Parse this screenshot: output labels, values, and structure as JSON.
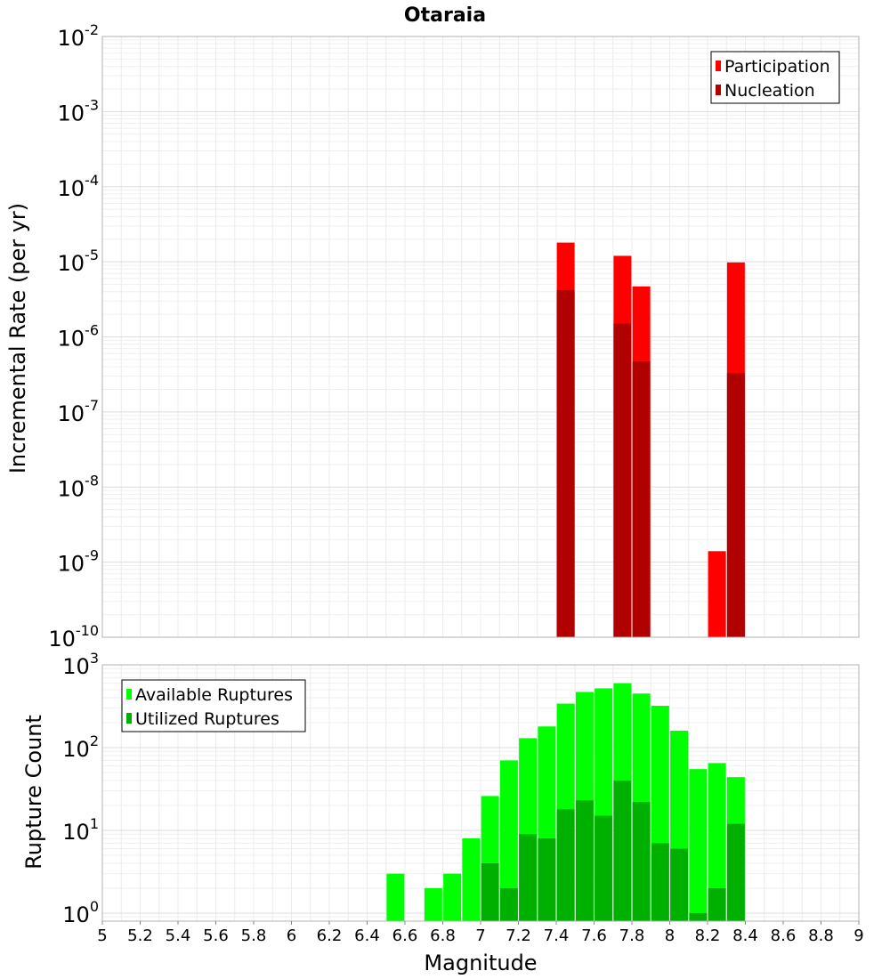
{
  "chart_data": [
    {
      "type": "bar",
      "title": "Otaraia",
      "xlabel": "",
      "ylabel": "Incremental Rate (per yr)",
      "yscale": "log",
      "ylim": [
        1e-10,
        0.01
      ],
      "xlim": [
        5,
        9
      ],
      "y_tick_exponents": [
        -10,
        -9,
        -8,
        -7,
        -6,
        -5,
        -4,
        -3,
        -2
      ],
      "grid": true,
      "legend_position": "top-right",
      "series": [
        {
          "name": "Participation",
          "color": "#ff0000",
          "x": [
            7.45,
            7.75,
            7.85,
            8.25,
            8.35
          ],
          "values": [
            1.8e-05,
            1.2e-05,
            4.7e-06,
            1.4e-09,
            9.8e-06
          ]
        },
        {
          "name": "Nucleation",
          "color": "#b00000",
          "x": [
            7.45,
            7.75,
            7.85,
            8.35
          ],
          "values": [
            4.2e-06,
            1.5e-06,
            4.7e-07,
            3.3e-07
          ]
        }
      ]
    },
    {
      "type": "bar",
      "xlabel": "Magnitude",
      "ylabel": "Rupture Count",
      "yscale": "log",
      "ylim": [
        0.8,
        1000
      ],
      "xlim": [
        5,
        9
      ],
      "y_tick_exponents": [
        0,
        1,
        2,
        3
      ],
      "x_tick_labels": [
        "5",
        "5.2",
        "5.4",
        "5.6",
        "5.8",
        "6",
        "6.2",
        "6.4",
        "6.6",
        "6.8",
        "7",
        "7.2",
        "7.4",
        "7.6",
        "7.8",
        "8",
        "8.2",
        "8.4",
        "8.6",
        "8.8",
        "9"
      ],
      "grid": true,
      "legend_position": "top-left",
      "series": [
        {
          "name": "Available Ruptures",
          "color": "#00ff00",
          "x": [
            6.55,
            6.75,
            6.85,
            6.95,
            7.05,
            7.15,
            7.25,
            7.35,
            7.45,
            7.55,
            7.65,
            7.75,
            7.85,
            7.95,
            8.05,
            8.15,
            8.25,
            8.35
          ],
          "values": [
            3,
            2,
            3,
            8,
            26,
            70,
            130,
            180,
            340,
            470,
            520,
            600,
            450,
            320,
            160,
            55,
            65,
            44
          ]
        },
        {
          "name": "Utilized Ruptures",
          "color": "#00b000",
          "x": [
            7.05,
            7.15,
            7.25,
            7.35,
            7.45,
            7.55,
            7.65,
            7.75,
            7.85,
            7.95,
            8.05,
            8.15,
            8.25,
            8.35
          ],
          "values": [
            4,
            2,
            9,
            8,
            18,
            23,
            15,
            40,
            22,
            7,
            6,
            1,
            2,
            12
          ]
        }
      ]
    }
  ]
}
